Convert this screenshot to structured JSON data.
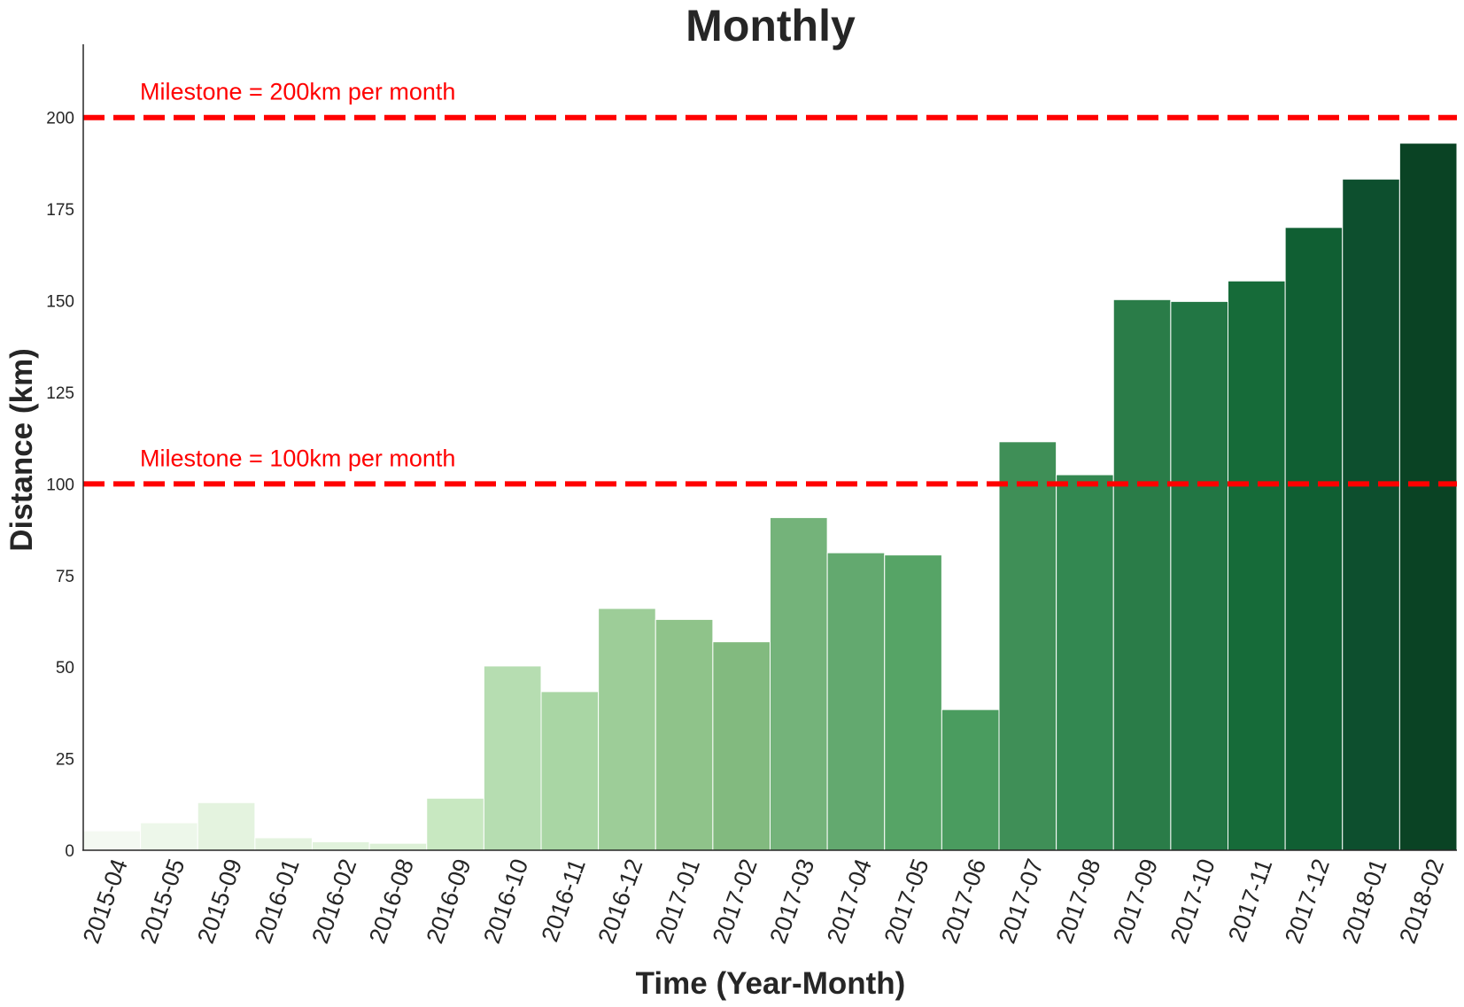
{
  "chart_data": {
    "type": "bar",
    "title": "Monthly",
    "xlabel": "Time  (Year-Month)",
    "ylabel": "Distance (km)",
    "ylim": [
      0,
      220
    ],
    "yticks": [
      0,
      25,
      50,
      75,
      100,
      125,
      150,
      175,
      200
    ],
    "grid": false,
    "categories": [
      "2015-04",
      "2015-05",
      "2015-09",
      "2016-01",
      "2016-02",
      "2016-08",
      "2016-09",
      "2016-10",
      "2016-11",
      "2016-12",
      "2017-01",
      "2017-02",
      "2017-03",
      "2017-04",
      "2017-05",
      "2017-06",
      "2017-07",
      "2017-08",
      "2017-09",
      "2017-10",
      "2017-11",
      "2017-12",
      "2018-01",
      "2018-02"
    ],
    "values": [
      5.3,
      7.5,
      13.0,
      3.4,
      2.3,
      1.9,
      14.2,
      50.3,
      43.3,
      66.0,
      63.0,
      56.9,
      90.8,
      81.2,
      80.6,
      38.4,
      111.5,
      102.5,
      150.3,
      149.8,
      155.4,
      170.0,
      183.2,
      193.0
    ],
    "bar_colors": [
      "#f4f9f2",
      "#edf7ea",
      "#e4f3df",
      "#e4f3df",
      "#e1f2dc",
      "#dcf0d6",
      "#c8e8c1",
      "#b6ddb1",
      "#a9d6a4",
      "#9dcd98",
      "#8fc38a",
      "#82ba7f",
      "#74b37a",
      "#63a96f",
      "#56a466",
      "#4a9c5f",
      "#3f8f57",
      "#338851",
      "#2a7c48",
      "#227644",
      "#166b39",
      "#105f33",
      "#0d4f2e",
      "#0a4324"
    ],
    "reference_lines": [
      {
        "y": 200,
        "label": "Milestone = 200km per month",
        "color": "#ff0000"
      },
      {
        "y": 100,
        "label": "Milestone = 100km per month",
        "color": "#ff0000"
      }
    ]
  }
}
